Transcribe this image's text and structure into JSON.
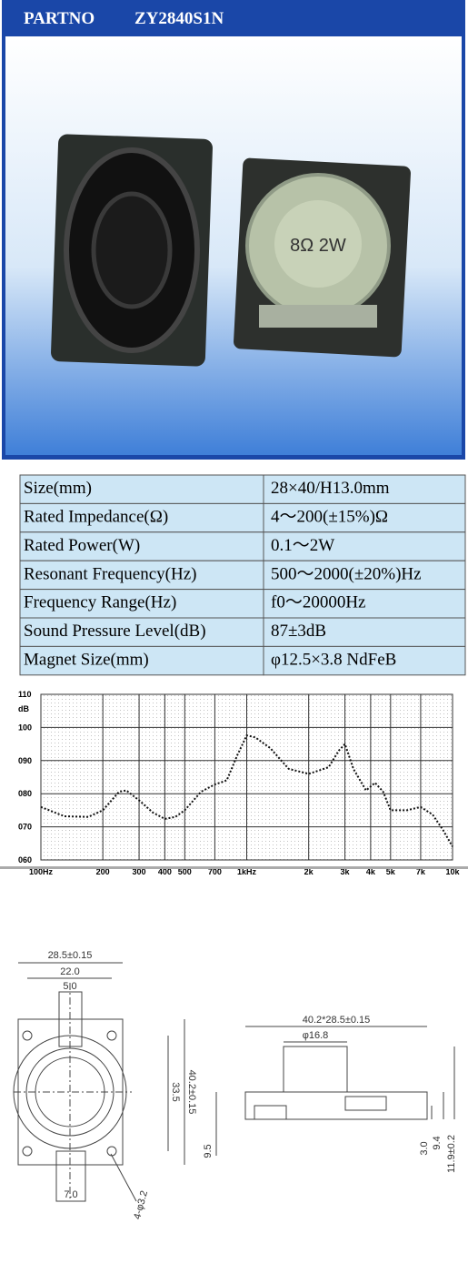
{
  "header": {
    "label": "PARTNO",
    "part": "ZY2840S1N"
  },
  "photo": {
    "marking": "8Ω 2W"
  },
  "table": {
    "rows": [
      [
        "Size(mm)",
        "28×40/H13.0mm"
      ],
      [
        "Rated Impedance(Ω)",
        "4～200(±15%)Ω"
      ],
      [
        "Rated Power(W)",
        "0.1～2W"
      ],
      [
        "Resonant Frequency(Hz)",
        "500～2000(±20%)Hz"
      ],
      [
        "Frequency Range(Hz)",
        "f0～20000Hz"
      ],
      [
        "Sound Pressure Level(dB)",
        "87±3dB"
      ],
      [
        "Magnet Size(mm)",
        "φ12.5×3.8 NdFeB"
      ]
    ]
  },
  "chart_data": {
    "type": "line",
    "y_label": "dB",
    "log_x": true,
    "grid": true,
    "color": "#111111",
    "x": [
      100,
      130,
      170,
      200,
      240,
      260,
      300,
      350,
      400,
      450,
      500,
      600,
      700,
      800,
      900,
      1000,
      1100,
      1300,
      1600,
      2000,
      2500,
      2800,
      3000,
      3300,
      3800,
      4200,
      4600,
      5000,
      6000,
      7000,
      8000,
      9000,
      10000
    ],
    "values": [
      76,
      73.2,
      73,
      75,
      80.6,
      81,
      78,
      74.3,
      72.4,
      73,
      75,
      80.6,
      82.8,
      84,
      91.6,
      97.6,
      97,
      93.8,
      87.5,
      86,
      88,
      93,
      95,
      87.5,
      81,
      83.3,
      80.6,
      75,
      75,
      76,
      73.7,
      69,
      64
    ],
    "xlim": [
      100,
      10000
    ],
    "ylim": [
      60,
      110
    ],
    "xticks": [
      {
        "value": 100,
        "label": "100Hz"
      },
      200,
      300,
      400,
      500,
      700,
      {
        "value": 1000,
        "label": "1kHz"
      },
      {
        "value": 2000,
        "label": "2k"
      },
      {
        "value": 3000,
        "label": "3k"
      },
      {
        "value": 4000,
        "label": "4k"
      },
      {
        "value": 5000,
        "label": "5k"
      },
      {
        "value": 7000,
        "label": "7k"
      },
      {
        "value": 10000,
        "label": "10k"
      }
    ],
    "yticks": [
      {
        "value": 60,
        "label": "060"
      },
      {
        "value": 70,
        "label": "070"
      },
      {
        "value": 80,
        "label": "080"
      },
      {
        "value": 90,
        "label": "090"
      },
      100,
      110
    ]
  },
  "drawings": {
    "front": [
      "28.5±0.15",
      "22.0",
      "5.0",
      "40.2±0.15",
      "33.5",
      "4-φ3.2",
      "7.0",
      "9.5"
    ],
    "side": [
      "40.2*28.5±0.15",
      "φ16.8",
      "3.0",
      "9.4",
      "11.9±0.2"
    ]
  }
}
